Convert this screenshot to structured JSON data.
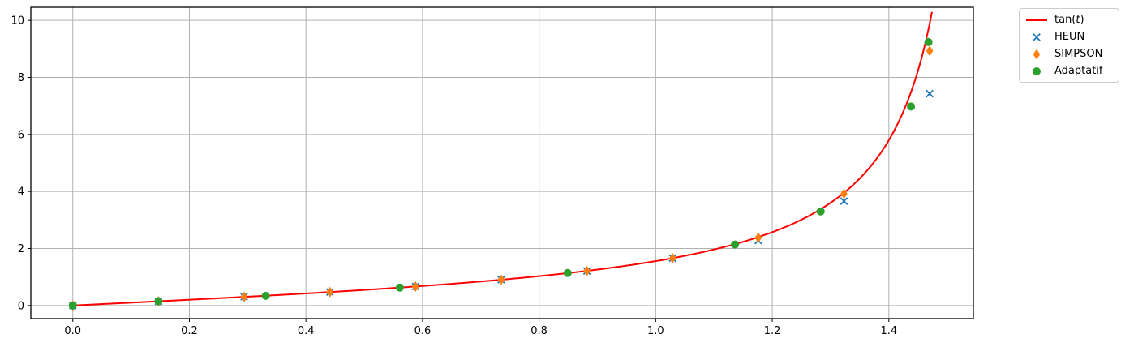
{
  "chart_data": {
    "type": "line+scatter",
    "title": "",
    "xlabel": "",
    "ylabel": "",
    "xlim": [
      -0.072,
      1.545
    ],
    "ylim": [
      -0.46,
      10.46
    ],
    "grid": true,
    "grid_color": "#b0b0b0",
    "spine_color": "#000000",
    "background": "#ffffff",
    "xticks": {
      "values": [
        0.0,
        0.2,
        0.4,
        0.6,
        0.8,
        1.0,
        1.2,
        1.4
      ],
      "labels": [
        "0.0",
        "0.2",
        "0.4",
        "0.6",
        "0.8",
        "1.0",
        "1.2",
        "1.4"
      ]
    },
    "yticks": {
      "values": [
        0,
        2,
        4,
        6,
        8,
        10
      ],
      "labels": [
        "0",
        "2",
        "4",
        "6",
        "8",
        "10"
      ]
    },
    "curve": {
      "name": "tan(t)",
      "function": "tan",
      "color": "#ff0000",
      "linewidth": 2,
      "t_start": 0,
      "t_end": 1.476
    },
    "series": [
      {
        "name": "HEUN",
        "marker": "x",
        "color": "#1f77b4",
        "points": [
          [
            0.0,
            0.0
          ],
          [
            0.147,
            0.148
          ],
          [
            0.294,
            0.303
          ],
          [
            0.441,
            0.473
          ],
          [
            0.588,
            0.664
          ],
          [
            0.735,
            0.905
          ],
          [
            0.882,
            1.21
          ],
          [
            1.029,
            1.66
          ],
          [
            1.176,
            2.28
          ],
          [
            1.323,
            3.66
          ],
          [
            1.47,
            7.43
          ]
        ]
      },
      {
        "name": "SIMPSON",
        "marker": "thin-diamond",
        "color": "#ff7f0e",
        "points": [
          [
            0.0,
            0.0
          ],
          [
            0.147,
            0.148
          ],
          [
            0.294,
            0.303
          ],
          [
            0.441,
            0.473
          ],
          [
            0.588,
            0.664
          ],
          [
            0.735,
            0.905
          ],
          [
            0.882,
            1.21
          ],
          [
            1.029,
            1.66
          ],
          [
            1.176,
            2.38
          ],
          [
            1.323,
            3.92
          ],
          [
            1.47,
            8.93
          ]
        ]
      },
      {
        "name": "Adaptatif",
        "marker": "circle",
        "color": "#2ca02c",
        "points": [
          [
            0.0,
            0.0
          ],
          [
            0.147,
            0.15
          ],
          [
            0.331,
            0.34
          ],
          [
            0.561,
            0.628
          ],
          [
            0.849,
            1.14
          ],
          [
            1.136,
            2.14
          ],
          [
            1.283,
            3.3
          ],
          [
            1.438,
            6.98
          ],
          [
            1.468,
            9.24
          ]
        ]
      }
    ],
    "legend": {
      "position": "outside-upper-right",
      "items": [
        {
          "name": "tan-t",
          "marker": "line",
          "color": "#ff0000",
          "label": "tan(t)",
          "label_parts": [
            {
              "text": "tan("
            },
            {
              "text": "t",
              "italic": true
            },
            {
              "text": ")"
            }
          ]
        },
        {
          "name": "heun",
          "marker": "x",
          "color": "#1f77b4",
          "label": "HEUN",
          "label_parts": [
            {
              "text": "HEUN"
            }
          ]
        },
        {
          "name": "simpson",
          "marker": "thin-diamond",
          "color": "#ff7f0e",
          "label": "SIMPSON",
          "label_parts": [
            {
              "text": "SIMPSON"
            }
          ]
        },
        {
          "name": "adaptatif",
          "marker": "circle",
          "color": "#2ca02c",
          "label": "Adaptatif",
          "label_parts": [
            {
              "text": "Adaptatif"
            }
          ]
        }
      ]
    }
  }
}
